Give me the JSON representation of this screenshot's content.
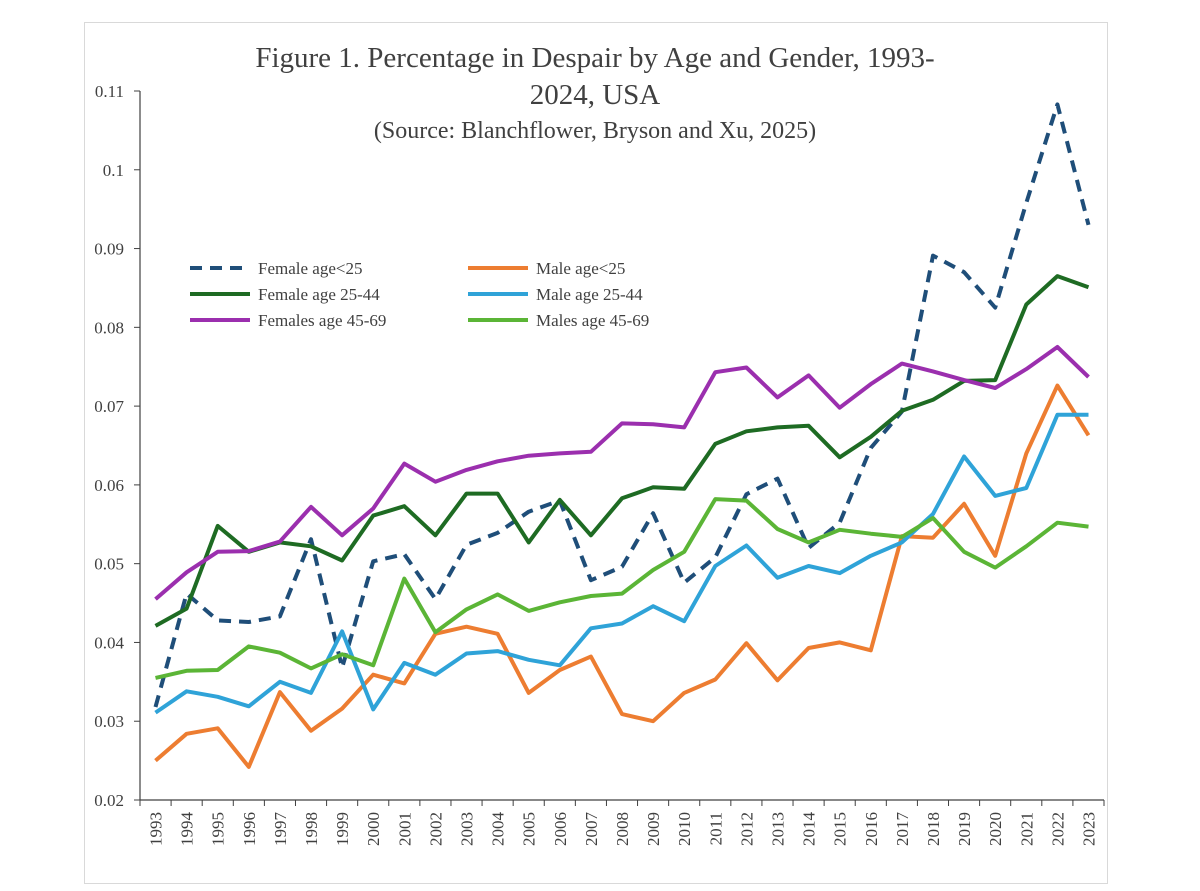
{
  "chart_data": {
    "type": "line",
    "title_lines": [
      "Figure 1.  Percentage in Despair by Age and Gender, 1993-",
      "2024, USA"
    ],
    "subtitle": "(Source: Blanchflower, Bryson and Xu, 2025)",
    "xlabel": "",
    "ylabel": "",
    "ylim": [
      0.02,
      0.11
    ],
    "yticks": [
      "0.11",
      "0.1",
      "0.09",
      "0.08",
      "0.07",
      "0.06",
      "0.05",
      "0.04",
      "0.03",
      "0.02"
    ],
    "ytick_values": [
      0.11,
      0.1,
      0.09,
      0.08,
      0.07,
      0.06,
      0.05,
      0.04,
      0.03,
      0.02
    ],
    "grid": false,
    "legend_position": "top-left",
    "x": [
      "1993",
      "1994",
      "1995",
      "1996",
      "1997",
      "1998",
      "1999",
      "2000",
      "2001",
      "2002",
      "2003",
      "2004",
      "2005",
      "2006",
      "2007",
      "2008",
      "2009",
      "2010",
      "2011",
      "2012",
      "2013",
      "2014",
      "2015",
      "2016",
      "2017",
      "2018",
      "2019",
      "2020",
      "2021",
      "2022",
      "2023"
    ],
    "series": [
      {
        "name": "Female age<25",
        "color": "#1f4e79",
        "dashed": true,
        "values": [
          0.0318,
          0.0462,
          0.0428,
          0.0426,
          0.0433,
          0.0531,
          0.0368,
          0.0503,
          0.0512,
          0.0455,
          0.0524,
          0.0539,
          0.0566,
          0.058,
          0.0479,
          0.0496,
          0.0564,
          0.0476,
          0.0508,
          0.0588,
          0.0608,
          0.052,
          0.0552,
          0.0647,
          0.0693,
          0.0891,
          0.087,
          0.0825,
          0.0958,
          0.1083,
          0.093
        ]
      },
      {
        "name": "Male age<25",
        "color": "#ed7d31",
        "dashed": false,
        "values": [
          0.025,
          0.0284,
          0.0291,
          0.0242,
          0.0337,
          0.0288,
          0.0316,
          0.0359,
          0.0348,
          0.0411,
          0.042,
          0.0411,
          0.0336,
          0.0365,
          0.0382,
          0.0309,
          0.03,
          0.0336,
          0.0353,
          0.0399,
          0.0352,
          0.0393,
          0.04,
          0.039,
          0.0535,
          0.0533,
          0.0576,
          0.051,
          0.064,
          0.0726,
          0.0663
        ]
      },
      {
        "name": "Female age 25-44",
        "color": "#1e6b23",
        "dashed": false,
        "values": [
          0.0421,
          0.0443,
          0.0548,
          0.0515,
          0.0527,
          0.0522,
          0.0504,
          0.0561,
          0.0573,
          0.0536,
          0.0589,
          0.0589,
          0.0527,
          0.0581,
          0.0536,
          0.0583,
          0.0597,
          0.0595,
          0.0652,
          0.0668,
          0.0673,
          0.0675,
          0.0635,
          0.0661,
          0.0694,
          0.0708,
          0.0732,
          0.0733,
          0.0829,
          0.0865,
          0.0851
        ]
      },
      {
        "name": "Male age 25-44",
        "color": "#2fa3d8",
        "dashed": false,
        "values": [
          0.0311,
          0.0338,
          0.0331,
          0.0319,
          0.035,
          0.0336,
          0.0414,
          0.0315,
          0.0374,
          0.0359,
          0.0386,
          0.0389,
          0.0378,
          0.0371,
          0.0418,
          0.0424,
          0.0446,
          0.0427,
          0.0497,
          0.0523,
          0.0482,
          0.0497,
          0.0488,
          0.051,
          0.0527,
          0.0563,
          0.0636,
          0.0586,
          0.0596,
          0.0689,
          0.0689
        ]
      },
      {
        "name": "Females age 45-69",
        "color": "#9b2fae",
        "dashed": false,
        "values": [
          0.0455,
          0.0489,
          0.0515,
          0.0516,
          0.0528,
          0.0572,
          0.0536,
          0.057,
          0.0627,
          0.0604,
          0.0619,
          0.063,
          0.0637,
          0.064,
          0.0642,
          0.0678,
          0.0677,
          0.0673,
          0.0743,
          0.0749,
          0.0711,
          0.0739,
          0.0698,
          0.0728,
          0.0754,
          0.0744,
          0.0733,
          0.0723,
          0.0747,
          0.0775,
          0.0737
        ]
      },
      {
        "name": "Males age 45-69",
        "color": "#5bb536",
        "dashed": false,
        "values": [
          0.0355,
          0.0364,
          0.0365,
          0.0395,
          0.0387,
          0.0367,
          0.0385,
          0.0371,
          0.0481,
          0.0413,
          0.0442,
          0.0461,
          0.044,
          0.0451,
          0.0459,
          0.0462,
          0.0492,
          0.0515,
          0.0582,
          0.058,
          0.0544,
          0.0527,
          0.0543,
          0.0538,
          0.0534,
          0.0558,
          0.0515,
          0.0495,
          0.0522,
          0.0552,
          0.0547
        ]
      }
    ]
  }
}
